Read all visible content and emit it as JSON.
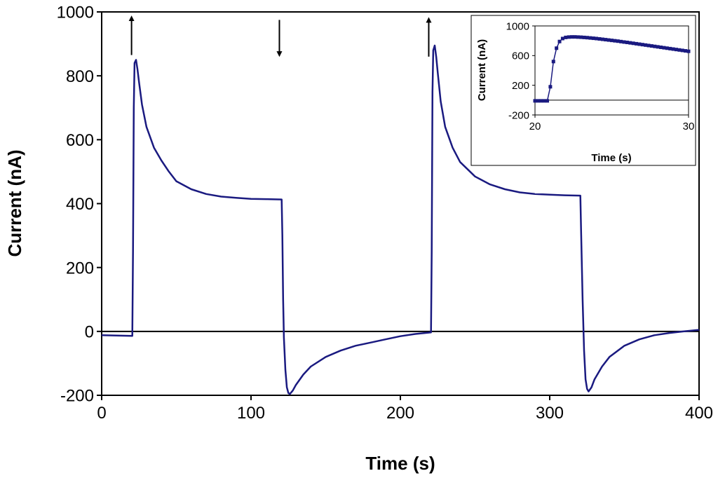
{
  "chart_data": [
    {
      "type": "line",
      "role": "main",
      "xlabel": "Time (s)",
      "ylabel": "Current (nA)",
      "xlim": [
        0,
        400
      ],
      "ylim": [
        -200,
        1000
      ],
      "xticks": [
        0,
        100,
        200,
        300,
        400
      ],
      "yticks": [
        -200,
        0,
        200,
        400,
        600,
        800,
        1000
      ],
      "xtick_labels": [
        "0",
        "100",
        "200",
        "300",
        "400"
      ],
      "ytick_labels": [
        "-200",
        "0",
        "200",
        "400",
        "600",
        "800",
        "1000"
      ],
      "zero_line": true,
      "color": "#1a1a80",
      "series": [
        {
          "name": "Current",
          "x": [
            0,
            10,
            20.5,
            21,
            21.5,
            22,
            23,
            24,
            25,
            27,
            30,
            35,
            40,
            45,
            50,
            60,
            70,
            80,
            90,
            100,
            110,
            120.5,
            121,
            121.5,
            122,
            123,
            124,
            125,
            126,
            128,
            130,
            135,
            140,
            150,
            160,
            170,
            180,
            190,
            200,
            210,
            220.5,
            221,
            221.5,
            222,
            223,
            224,
            225,
            227,
            230,
            235,
            240,
            250,
            260,
            270,
            280,
            290,
            300,
            310,
            320.5,
            321,
            322,
            323,
            324,
            325,
            326,
            328,
            330,
            335,
            340,
            350,
            360,
            370,
            380,
            390,
            400
          ],
          "y": [
            -12,
            -13,
            -14,
            250,
            700,
            840,
            850,
            820,
            780,
            710,
            640,
            575,
            535,
            500,
            470,
            445,
            430,
            422,
            418,
            415,
            414,
            413,
            300,
            100,
            -20,
            -120,
            -175,
            -193,
            -196,
            -185,
            -168,
            -135,
            -110,
            -80,
            -60,
            -45,
            -35,
            -25,
            -15,
            -8,
            -3,
            250,
            750,
            880,
            895,
            860,
            810,
            720,
            640,
            575,
            530,
            485,
            460,
            445,
            435,
            430,
            428,
            426,
            425,
            320,
            100,
            -60,
            -150,
            -180,
            -188,
            -175,
            -150,
            -110,
            -80,
            -45,
            -25,
            -12,
            -5,
            0,
            5
          ]
        }
      ],
      "annotations": [
        {
          "type": "arrow",
          "direction": "up",
          "x": 20,
          "y_from": 865,
          "y_to": 980
        },
        {
          "type": "arrow",
          "direction": "down",
          "x": 119,
          "y_from": 975,
          "y_to": 868
        },
        {
          "type": "arrow",
          "direction": "up",
          "x": 219,
          "y_from": 860,
          "y_to": 975
        }
      ]
    },
    {
      "type": "line",
      "role": "inset",
      "xlabel": "Time (s)",
      "ylabel": "Current (nA)",
      "xlim": [
        20,
        30
      ],
      "ylim": [
        -200,
        1000
      ],
      "xticks": [
        20,
        30
      ],
      "yticks": [
        -200,
        200,
        600,
        1000
      ],
      "xtick_labels": [
        "20",
        "30"
      ],
      "ytick_labels": [
        "-200",
        "200",
        "600",
        "1000"
      ],
      "zero_line": true,
      "color": "#1a1a80",
      "marker": "square",
      "series": [
        {
          "name": "Current",
          "x": [
            20,
            20.2,
            20.4,
            20.6,
            20.8,
            21.0,
            21.2,
            21.4,
            21.6,
            21.8,
            22.0,
            22.2,
            22.4,
            22.6,
            22.8,
            23.0,
            23.2,
            23.4,
            23.6,
            23.8,
            24.0,
            24.2,
            24.4,
            24.6,
            24.8,
            25.0,
            25.2,
            25.4,
            25.6,
            25.8,
            26.0,
            26.2,
            26.4,
            26.6,
            26.8,
            27.0,
            27.2,
            27.4,
            27.6,
            27.8,
            28.0,
            28.2,
            28.4,
            28.6,
            28.8,
            29.0,
            29.2,
            29.4,
            29.6,
            29.8,
            30.0
          ],
          "y": [
            -10,
            -10,
            -10,
            -10,
            -10,
            180,
            520,
            700,
            790,
            830,
            845,
            850,
            852,
            852,
            850,
            848,
            845,
            842,
            838,
            834,
            830,
            825,
            820,
            815,
            810,
            805,
            800,
            795,
            789,
            783,
            778,
            772,
            766,
            760,
            754,
            748,
            742,
            736,
            730,
            724,
            718,
            712,
            706,
            700,
            694,
            688,
            682,
            676,
            670,
            664,
            658
          ]
        }
      ]
    }
  ]
}
